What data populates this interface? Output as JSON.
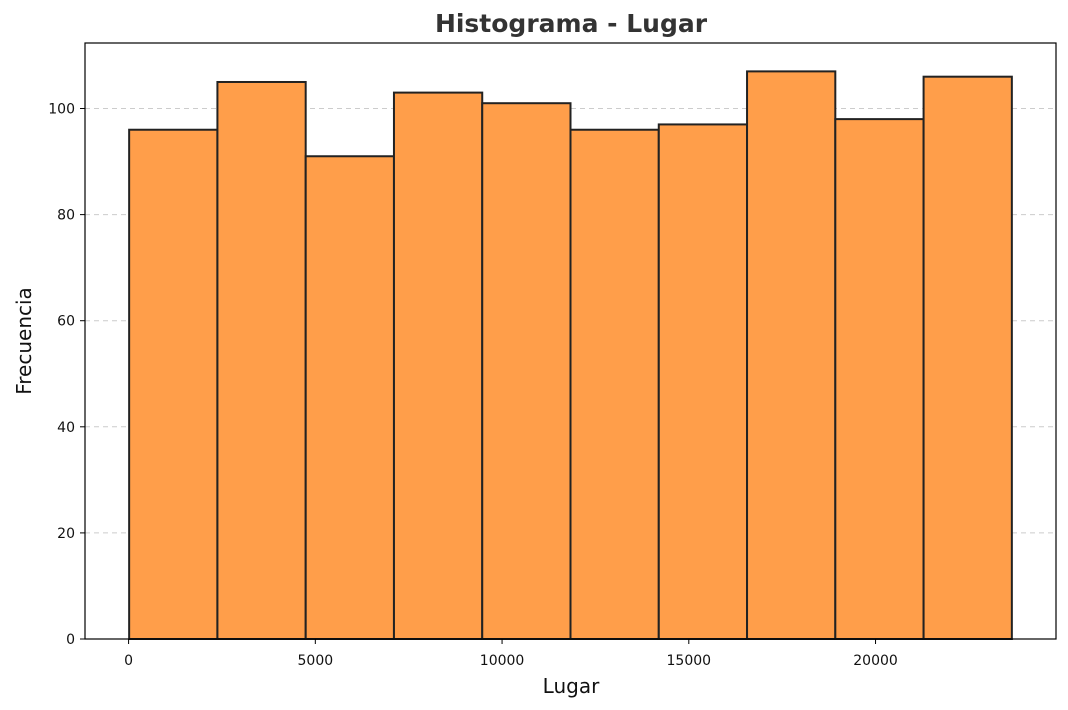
{
  "chart_data": {
    "type": "bar",
    "title": "Histograma - Lugar",
    "xlabel": "Lugar",
    "ylabel": "Frecuencia",
    "bin_edges": [
      15,
      2378.5,
      4742,
      7105.5,
      9469,
      11832.5,
      14196,
      16559.5,
      18923,
      21286.5,
      23650
    ],
    "values": [
      96,
      105,
      91,
      103,
      101,
      96,
      97,
      107,
      98,
      106
    ],
    "xlim": [
      -1167,
      24832
    ],
    "ylim": [
      0,
      112.35
    ],
    "x_ticks": [
      0,
      5000,
      10000,
      15000,
      20000
    ],
    "y_ticks": [
      0,
      20,
      40,
      60,
      80,
      100
    ],
    "grid": "y-dashed",
    "colors": {
      "bar_fill": "#ff9e4a",
      "bar_edge": "#222222",
      "grid": "#cccccc"
    }
  }
}
